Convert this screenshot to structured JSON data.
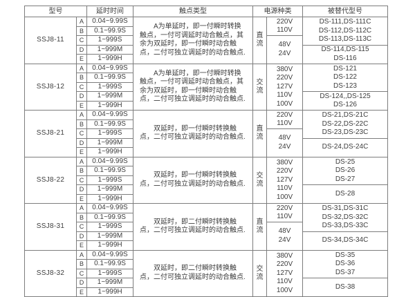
{
  "page": {
    "background": "#ffffff",
    "border_color": "#7c7c7c",
    "text_color": "#3c3c3c"
  },
  "table": {
    "headers": {
      "model": "型号",
      "delay": "延时时间",
      "contact": "触点类型",
      "power": "电源种类",
      "replaced": "被替代型号"
    },
    "row_letters": [
      "A",
      "B",
      "C",
      "D",
      "E"
    ],
    "delay_values": [
      "0.04~9.99S",
      "0.1~99.9S",
      "1~999S",
      "1~999M",
      "1~999H"
    ],
    "groups": [
      {
        "model": "SSJ8-11",
        "contact": "A为单延时，即一付瞬时转换触点，一付可调延时动合触点，其余为双延时，即一付瞬时动合触点，二付可独立调延时的动合触点.",
        "power_type": "直流",
        "power_cells": [
          {
            "span": 2,
            "lines": [
              "220V",
              "110V"
            ]
          },
          {
            "span": 3,
            "lines": [
              "48V",
              "24V"
            ]
          }
        ],
        "replaced_cells": [
          {
            "span": 3,
            "lines": [
              "DS-111,DS-111C",
              "DS-112,DS-112C",
              "DS-113,DS-113C"
            ]
          },
          {
            "span": 2,
            "lines": [
              "DS-114,DS-115",
              "DS-116"
            ]
          }
        ]
      },
      {
        "model": "SSJ8-12",
        "contact": "A为单延时，即一付瞬时转换触点，一付可调延时动合触点，其余为双延时，即一付瞬时动合触点，二付可独立调延时的动合触点.",
        "power_type": "交流",
        "power_cells": [
          {
            "span": 5,
            "lines": [
              "380V",
              "220V",
              "127V",
              "110V",
              "100V"
            ]
          }
        ],
        "replaced_cells": [
          {
            "span": 3,
            "lines": [
              "DS-121",
              "DS-122",
              "DS-123"
            ]
          },
          {
            "span": 2,
            "lines": [
              "DS-124,,DS-125",
              "DS-126"
            ]
          }
        ]
      },
      {
        "model": "SSJ8-21",
        "contact": "双延时，即一付瞬时转换触点，二付可独立调延时的动合触点.",
        "power_type": "直流",
        "power_cells": [
          {
            "span": 2,
            "lines": [
              "220V",
              "110V"
            ]
          },
          {
            "span": 3,
            "lines": [
              "48V",
              "24V"
            ]
          }
        ],
        "replaced_cells": [
          {
            "span": 3,
            "lines": [
              "DS-21,DS-21C",
              "DS-22,DS-22C",
              "DS-23,DS-23C"
            ]
          },
          {
            "span": 2,
            "lines": [
              "DS-24,DS-24C"
            ]
          }
        ]
      },
      {
        "model": "SSJ8-22",
        "contact": "双延时，即一付瞬时转换触点，二付可独立调延时的动合触点.",
        "power_type": "交流",
        "power_cells": [
          {
            "span": 5,
            "lines": [
              "380V",
              "220V",
              "127V",
              "110V",
              "100V"
            ]
          }
        ],
        "replaced_cells": [
          {
            "span": 3,
            "lines": [
              "DS-25",
              "DS-26",
              "DS-27"
            ]
          },
          {
            "span": 2,
            "lines": [
              "DS-28"
            ]
          }
        ]
      },
      {
        "model": "SSJ8-31",
        "contact": "双延时，即二付瞬时转换触点，二付可独立调延时的动合触点.",
        "power_type": "直流",
        "power_cells": [
          {
            "span": 2,
            "lines": [
              "220V",
              "110V"
            ]
          },
          {
            "span": 3,
            "lines": [
              "48V",
              "24V"
            ]
          }
        ],
        "replaced_cells": [
          {
            "span": 3,
            "lines": [
              "DS-31,DS-31C",
              "DS-32,DS-32C",
              "DS-33,DS-33C"
            ]
          },
          {
            "span": 2,
            "lines": [
              "DS-34,DS-34C"
            ]
          }
        ]
      },
      {
        "model": "SSJ8-32",
        "contact": "双延时，即二付瞬时转换触点，二付可独立调延时的动合触点.",
        "power_type": "交流",
        "power_cells": [
          {
            "span": 5,
            "lines": [
              "380V",
              "220V",
              "127V",
              "110V",
              "100V"
            ]
          }
        ],
        "replaced_cells": [
          {
            "span": 3,
            "lines": [
              "DS-35",
              "DS-36",
              "DS-37"
            ]
          },
          {
            "span": 2,
            "lines": [
              "DS-38"
            ]
          }
        ]
      }
    ]
  }
}
